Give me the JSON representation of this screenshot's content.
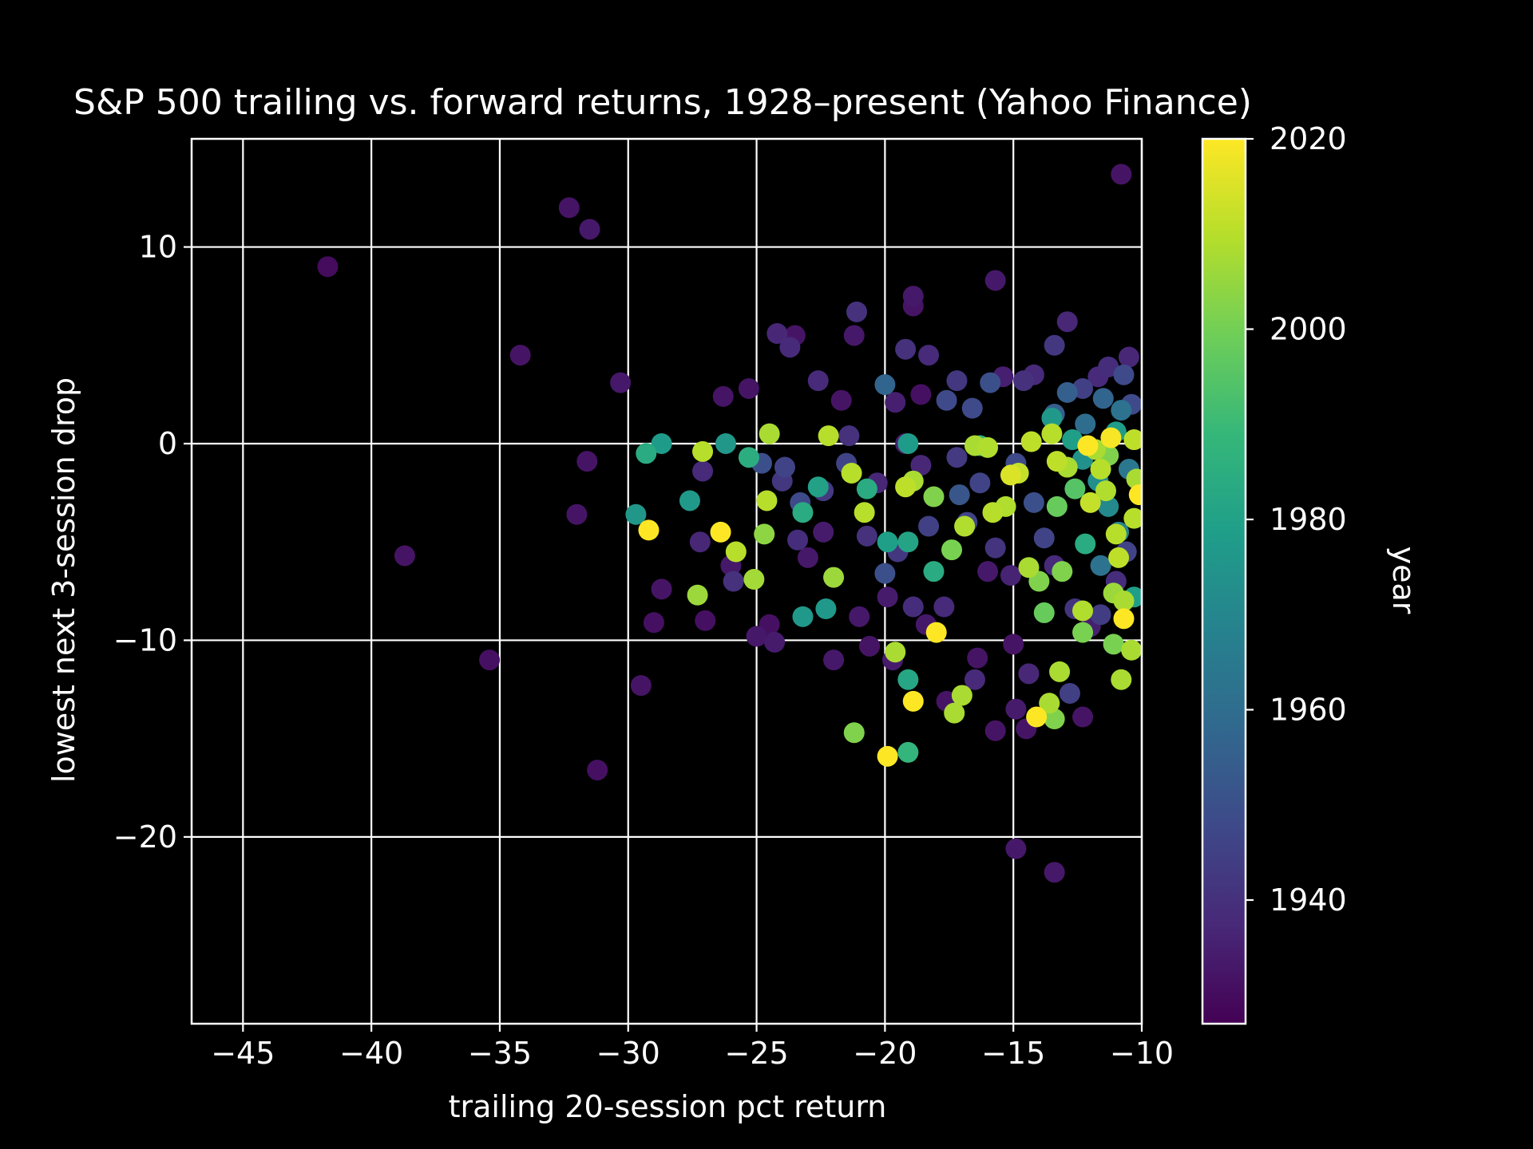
{
  "chart_data": {
    "type": "scatter",
    "title": "S&P 500 trailing vs. forward returns, 1928–present (Yahoo Finance)",
    "xlabel": "trailing 20-session pct return",
    "ylabel": "lowest next 3-session drop",
    "xlim": [
      -47,
      -10
    ],
    "ylim": [
      -29.5,
      15.5
    ],
    "x_ticks": [
      -45,
      -40,
      -35,
      -30,
      -25,
      -20,
      -15,
      -10
    ],
    "y_ticks": [
      -20,
      -10,
      0,
      10
    ],
    "grid": true,
    "background": "#000000",
    "text_color": "#ffffff",
    "colorbar": {
      "label": "year",
      "min": 1927,
      "max": 2020,
      "ticks": [
        1940,
        1960,
        1980,
        2000,
        2020
      ],
      "colormap": "viridis",
      "stops": [
        "#440154",
        "#482878",
        "#3e4989",
        "#31688e",
        "#26828e",
        "#1f9e89",
        "#35b779",
        "#6ece58",
        "#b5de2b",
        "#fde725"
      ]
    },
    "points": [
      {
        "x": -41.7,
        "y": 9.0,
        "year": 1930
      },
      {
        "x": -38.7,
        "y": -5.7,
        "year": 1932
      },
      {
        "x": -35.4,
        "y": -11.0,
        "year": 1931
      },
      {
        "x": -34.2,
        "y": 4.5,
        "year": 1932
      },
      {
        "x": -32.3,
        "y": 12.0,
        "year": 1932
      },
      {
        "x": -31.5,
        "y": 10.9,
        "year": 1933
      },
      {
        "x": -31.2,
        "y": -16.6,
        "year": 1931
      },
      {
        "x": -32.0,
        "y": -3.6,
        "year": 1932
      },
      {
        "x": -31.6,
        "y": -0.9,
        "year": 1932
      },
      {
        "x": -30.3,
        "y": 3.1,
        "year": 1933
      },
      {
        "x": -29.5,
        "y": -12.3,
        "year": 1932
      },
      {
        "x": -29.0,
        "y": -9.1,
        "year": 1931
      },
      {
        "x": -28.7,
        "y": -7.4,
        "year": 1932
      },
      {
        "x": -27.2,
        "y": -5.0,
        "year": 1937
      },
      {
        "x": -27.0,
        "y": -9.0,
        "year": 1931
      },
      {
        "x": -27.1,
        "y": -1.4,
        "year": 1938
      },
      {
        "x": -26.3,
        "y": 2.4,
        "year": 1932
      },
      {
        "x": -26.0,
        "y": -6.2,
        "year": 1933
      },
      {
        "x": -25.9,
        "y": -7.0,
        "year": 1940
      },
      {
        "x": -25.3,
        "y": 2.8,
        "year": 1932
      },
      {
        "x": -25.0,
        "y": -9.8,
        "year": 1933
      },
      {
        "x": -24.5,
        "y": -9.2,
        "year": 1931
      },
      {
        "x": -24.3,
        "y": -10.1,
        "year": 1934
      },
      {
        "x": -24.2,
        "y": 5.6,
        "year": 1937
      },
      {
        "x": -23.7,
        "y": 4.9,
        "year": 1938
      },
      {
        "x": -23.5,
        "y": 5.5,
        "year": 1932
      },
      {
        "x": -23.9,
        "y": -1.2,
        "year": 1946
      },
      {
        "x": -23.4,
        "y": -4.9,
        "year": 1939
      },
      {
        "x": -23.0,
        "y": -5.8,
        "year": 1933
      },
      {
        "x": -22.6,
        "y": 3.2,
        "year": 1938
      },
      {
        "x": -22.4,
        "y": -4.5,
        "year": 1934
      },
      {
        "x": -22.0,
        "y": -11.0,
        "year": 1933
      },
      {
        "x": -21.7,
        "y": 2.2,
        "year": 1932
      },
      {
        "x": -21.1,
        "y": 6.7,
        "year": 1940
      },
      {
        "x": -21.2,
        "y": 5.5,
        "year": 1933
      },
      {
        "x": -21.0,
        "y": -8.8,
        "year": 1933
      },
      {
        "x": -20.6,
        "y": -10.3,
        "year": 1932
      },
      {
        "x": -20.0,
        "y": 3.0,
        "year": 1957
      },
      {
        "x": -19.6,
        "y": 2.1,
        "year": 1935
      },
      {
        "x": -19.2,
        "y": 4.8,
        "year": 1940
      },
      {
        "x": -18.9,
        "y": 7.5,
        "year": 1933
      },
      {
        "x": -18.9,
        "y": 7.0,
        "year": 1932
      },
      {
        "x": -18.6,
        "y": 2.5,
        "year": 1931
      },
      {
        "x": -18.3,
        "y": 4.5,
        "year": 1938
      },
      {
        "x": -17.6,
        "y": 2.2,
        "year": 1948
      },
      {
        "x": -17.2,
        "y": 3.2,
        "year": 1942
      },
      {
        "x": -16.6,
        "y": 1.8,
        "year": 1948
      },
      {
        "x": -15.7,
        "y": 8.3,
        "year": 1933
      },
      {
        "x": -15.9,
        "y": 3.1,
        "year": 1950
      },
      {
        "x": -15.4,
        "y": 3.4,
        "year": 1935
      },
      {
        "x": -14.6,
        "y": 3.2,
        "year": 1940
      },
      {
        "x": -14.2,
        "y": 3.5,
        "year": 1938
      },
      {
        "x": -13.4,
        "y": 5.0,
        "year": 1942
      },
      {
        "x": -12.9,
        "y": 6.2,
        "year": 1937
      },
      {
        "x": -12.3,
        "y": 2.8,
        "year": 1945
      },
      {
        "x": -11.7,
        "y": 3.4,
        "year": 1938
      },
      {
        "x": -11.3,
        "y": 3.9,
        "year": 1939
      },
      {
        "x": -10.8,
        "y": 13.7,
        "year": 1932
      },
      {
        "x": -10.5,
        "y": 4.4,
        "year": 1937
      },
      {
        "x": -10.7,
        "y": 3.5,
        "year": 1948
      },
      {
        "x": -16.4,
        "y": -10.9,
        "year": 1932
      },
      {
        "x": -16.5,
        "y": -12.0,
        "year": 1938
      },
      {
        "x": -15.7,
        "y": -14.6,
        "year": 1932
      },
      {
        "x": -14.9,
        "y": -20.6,
        "year": 1933
      },
      {
        "x": -13.4,
        "y": -21.8,
        "year": 1933
      },
      {
        "x": -14.5,
        "y": -14.5,
        "year": 1932
      },
      {
        "x": -14.4,
        "y": -11.7,
        "year": 1937
      },
      {
        "x": -14.9,
        "y": -13.5,
        "year": 1934
      },
      {
        "x": -15.0,
        "y": -10.2,
        "year": 1932
      },
      {
        "x": -12.8,
        "y": -12.7,
        "year": 1945
      },
      {
        "x": -12.3,
        "y": -13.9,
        "year": 1932
      },
      {
        "x": -17.6,
        "y": -13.1,
        "year": 1932
      },
      {
        "x": -17.7,
        "y": -8.3,
        "year": 1938
      },
      {
        "x": -18.4,
        "y": -9.2,
        "year": 1933
      },
      {
        "x": -19.7,
        "y": -11.0,
        "year": 1934
      },
      {
        "x": -20.0,
        "y": -6.6,
        "year": 1950
      },
      {
        "x": -19.9,
        "y": -7.8,
        "year": 1934
      },
      {
        "x": -18.9,
        "y": -8.3,
        "year": 1939
      },
      {
        "x": -19.2,
        "y": 0.0,
        "year": 1935
      },
      {
        "x": -18.6,
        "y": -1.1,
        "year": 1937
      },
      {
        "x": -17.2,
        "y": -0.7,
        "year": 1943
      },
      {
        "x": -16.3,
        "y": -2.0,
        "year": 1946
      },
      {
        "x": -16.0,
        "y": -6.5,
        "year": 1933
      },
      {
        "x": -16.8,
        "y": -4.0,
        "year": 1946
      },
      {
        "x": -15.7,
        "y": -5.3,
        "year": 1941
      },
      {
        "x": -15.1,
        "y": -6.7,
        "year": 1936
      },
      {
        "x": -14.2,
        "y": -3.0,
        "year": 1950
      },
      {
        "x": -13.8,
        "y": -4.8,
        "year": 1946
      },
      {
        "x": -13.4,
        "y": -6.2,
        "year": 1938
      },
      {
        "x": -12.6,
        "y": -8.4,
        "year": 1941
      },
      {
        "x": -12.0,
        "y": -9.3,
        "year": 1935
      },
      {
        "x": -11.6,
        "y": -8.7,
        "year": 1944
      },
      {
        "x": -11.0,
        "y": -7.0,
        "year": 1939
      },
      {
        "x": -10.6,
        "y": -5.5,
        "year": 1946
      },
      {
        "x": -20.7,
        "y": -4.7,
        "year": 1940
      },
      {
        "x": -21.5,
        "y": -1.0,
        "year": 1946
      },
      {
        "x": -22.4,
        "y": -2.4,
        "year": 1943
      },
      {
        "x": -23.3,
        "y": -3.0,
        "year": 1948
      },
      {
        "x": -24.0,
        "y": -1.9,
        "year": 1942
      },
      {
        "x": -24.8,
        "y": -1.0,
        "year": 1950
      },
      {
        "x": -21.4,
        "y": 0.4,
        "year": 1940
      },
      {
        "x": -20.3,
        "y": -2.0,
        "year": 1937
      },
      {
        "x": -19.5,
        "y": -5.5,
        "year": 1942
      },
      {
        "x": -18.3,
        "y": -4.2,
        "year": 1945
      },
      {
        "x": -17.1,
        "y": -2.6,
        "year": 1952
      },
      {
        "x": -14.9,
        "y": -1.0,
        "year": 1948
      },
      {
        "x": -13.4,
        "y": 1.5,
        "year": 1955
      },
      {
        "x": -12.9,
        "y": 2.6,
        "year": 1955
      },
      {
        "x": -12.2,
        "y": 1.0,
        "year": 1960
      },
      {
        "x": -11.5,
        "y": 2.3,
        "year": 1957
      },
      {
        "x": -10.8,
        "y": 1.7,
        "year": 1962
      },
      {
        "x": -10.4,
        "y": 2.0,
        "year": 1948
      },
      {
        "x": -29.7,
        "y": -3.6,
        "year": 1976
      },
      {
        "x": -29.3,
        "y": -0.5,
        "year": 1984
      },
      {
        "x": -28.7,
        "y": 0.0,
        "year": 1978
      },
      {
        "x": -27.6,
        "y": -2.9,
        "year": 1977
      },
      {
        "x": -26.2,
        "y": 0.0,
        "year": 1976
      },
      {
        "x": -25.3,
        "y": -0.7,
        "year": 1985
      },
      {
        "x": -23.2,
        "y": -3.5,
        "year": 1984
      },
      {
        "x": -23.2,
        "y": -8.8,
        "year": 1977
      },
      {
        "x": -22.6,
        "y": -2.2,
        "year": 1980
      },
      {
        "x": -22.3,
        "y": -8.4,
        "year": 1977
      },
      {
        "x": -20.7,
        "y": -2.3,
        "year": 1984
      },
      {
        "x": -19.9,
        "y": -5.0,
        "year": 1979
      },
      {
        "x": -19.1,
        "y": -5.0,
        "year": 1981
      },
      {
        "x": -19.1,
        "y": 0.0,
        "year": 1978
      },
      {
        "x": -19.1,
        "y": -15.7,
        "year": 1988
      },
      {
        "x": -19.1,
        "y": -12.0,
        "year": 1982
      },
      {
        "x": -18.1,
        "y": -6.5,
        "year": 1984
      },
      {
        "x": -16.3,
        "y": -0.1,
        "year": 1988
      },
      {
        "x": -13.5,
        "y": 1.3,
        "year": 1977
      },
      {
        "x": -12.7,
        "y": 0.2,
        "year": 1979
      },
      {
        "x": -12.3,
        "y": -0.8,
        "year": 1974
      },
      {
        "x": -11.7,
        "y": -1.9,
        "year": 1973
      },
      {
        "x": -11.3,
        "y": -3.2,
        "year": 1971
      },
      {
        "x": -10.9,
        "y": -4.5,
        "year": 1969
      },
      {
        "x": -10.5,
        "y": -1.3,
        "year": 1964
      },
      {
        "x": -12.2,
        "y": -5.1,
        "year": 1984
      },
      {
        "x": -11.6,
        "y": -6.2,
        "year": 1962
      },
      {
        "x": -11.0,
        "y": 0.6,
        "year": 1978
      },
      {
        "x": -10.3,
        "y": -7.8,
        "year": 1979
      },
      {
        "x": -24.5,
        "y": 0.5,
        "year": 2008
      },
      {
        "x": -27.1,
        "y": -0.4,
        "year": 2010
      },
      {
        "x": -27.3,
        "y": -7.7,
        "year": 2006
      },
      {
        "x": -25.1,
        "y": -6.9,
        "year": 2007
      },
      {
        "x": -25.8,
        "y": -5.5,
        "year": 2010
      },
      {
        "x": -24.6,
        "y": -2.9,
        "year": 2010
      },
      {
        "x": -24.7,
        "y": -4.6,
        "year": 2004
      },
      {
        "x": -22.0,
        "y": -6.8,
        "year": 2006
      },
      {
        "x": -22.2,
        "y": 0.4,
        "year": 2010
      },
      {
        "x": -21.3,
        "y": -1.5,
        "year": 2010
      },
      {
        "x": -20.8,
        "y": -3.5,
        "year": 2010
      },
      {
        "x": -21.2,
        "y": -14.7,
        "year": 2002
      },
      {
        "x": -19.6,
        "y": -10.6,
        "year": 2008
      },
      {
        "x": -18.9,
        "y": -1.9,
        "year": 2008
      },
      {
        "x": -19.2,
        "y": -2.2,
        "year": 2011
      },
      {
        "x": -18.1,
        "y": -2.7,
        "year": 2002
      },
      {
        "x": -17.4,
        "y": -5.4,
        "year": 2001
      },
      {
        "x": -17.3,
        "y": -13.7,
        "year": 2008
      },
      {
        "x": -17.0,
        "y": -12.8,
        "year": 2008
      },
      {
        "x": -16.9,
        "y": -4.2,
        "year": 2009
      },
      {
        "x": -16.5,
        "y": -0.1,
        "year": 2008
      },
      {
        "x": -16.0,
        "y": -0.2,
        "year": 2009
      },
      {
        "x": -15.8,
        "y": -3.5,
        "year": 2010
      },
      {
        "x": -15.3,
        "y": -3.2,
        "year": 2009
      },
      {
        "x": -15.1,
        "y": -1.6,
        "year": 2015
      },
      {
        "x": -14.8,
        "y": -1.5,
        "year": 2012
      },
      {
        "x": -14.4,
        "y": -6.3,
        "year": 2008
      },
      {
        "x": -14.3,
        "y": 0.1,
        "year": 2011
      },
      {
        "x": -14.0,
        "y": -7.0,
        "year": 2002
      },
      {
        "x": -13.8,
        "y": -8.6,
        "year": 1998
      },
      {
        "x": -13.6,
        "y": -13.2,
        "year": 2008
      },
      {
        "x": -13.4,
        "y": -14.0,
        "year": 2002
      },
      {
        "x": -13.2,
        "y": -11.6,
        "year": 2008
      },
      {
        "x": -13.1,
        "y": -6.5,
        "year": 2002
      },
      {
        "x": -13.3,
        "y": -3.2,
        "year": 1998
      },
      {
        "x": -13.5,
        "y": 0.5,
        "year": 2010
      },
      {
        "x": -13.3,
        "y": -0.9,
        "year": 2011
      },
      {
        "x": -12.9,
        "y": -1.2,
        "year": 2008
      },
      {
        "x": -12.6,
        "y": -2.3,
        "year": 1995
      },
      {
        "x": -12.3,
        "y": -8.5,
        "year": 2009
      },
      {
        "x": -12.3,
        "y": -9.6,
        "year": 2001
      },
      {
        "x": -12.0,
        "y": -3.0,
        "year": 2012
      },
      {
        "x": -11.8,
        "y": -0.3,
        "year": 2008
      },
      {
        "x": -11.6,
        "y": -1.3,
        "year": 2010
      },
      {
        "x": -11.4,
        "y": -2.4,
        "year": 2009
      },
      {
        "x": -11.1,
        "y": -7.6,
        "year": 2006
      },
      {
        "x": -11.1,
        "y": -10.2,
        "year": 2001
      },
      {
        "x": -11.0,
        "y": -4.6,
        "year": 2010
      },
      {
        "x": -10.9,
        "y": -5.8,
        "year": 2011
      },
      {
        "x": -10.8,
        "y": -12.0,
        "year": 2008
      },
      {
        "x": -10.7,
        "y": -8.0,
        "year": 2008
      },
      {
        "x": -10.4,
        "y": -10.5,
        "year": 2008
      },
      {
        "x": -10.3,
        "y": -3.8,
        "year": 2010
      },
      {
        "x": -10.3,
        "y": 0.2,
        "year": 2011
      },
      {
        "x": -11.3,
        "y": -0.6,
        "year": 2002
      },
      {
        "x": -10.2,
        "y": -1.8,
        "year": 2008
      },
      {
        "x": -29.2,
        "y": -4.4,
        "year": 2020
      },
      {
        "x": -26.4,
        "y": -4.5,
        "year": 2020
      },
      {
        "x": -19.9,
        "y": -15.9,
        "year": 2020
      },
      {
        "x": -18.9,
        "y": -13.1,
        "year": 2020
      },
      {
        "x": -18.0,
        "y": -9.6,
        "year": 2020
      },
      {
        "x": -14.1,
        "y": -13.9,
        "year": 2020
      },
      {
        "x": -12.1,
        "y": -0.1,
        "year": 2020
      },
      {
        "x": -11.2,
        "y": 0.3,
        "year": 2019
      },
      {
        "x": -10.7,
        "y": -8.9,
        "year": 2020
      },
      {
        "x": -10.1,
        "y": -2.6,
        "year": 2020
      }
    ]
  }
}
